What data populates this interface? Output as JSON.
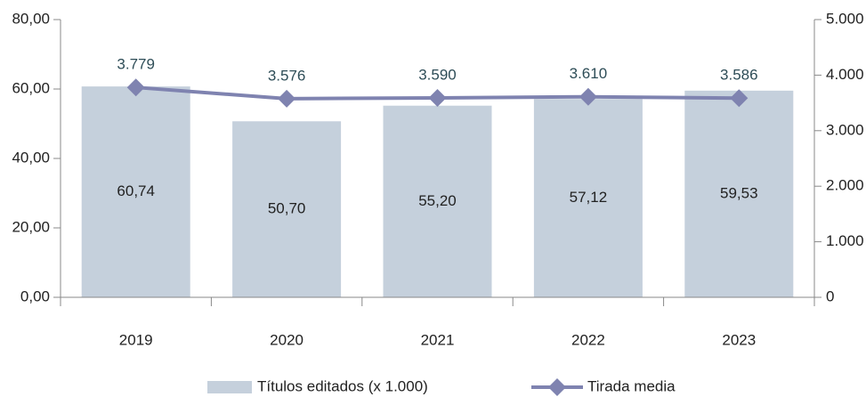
{
  "chart_data": {
    "type": "bar",
    "categories": [
      "2019",
      "2020",
      "2021",
      "2022",
      "2023"
    ],
    "series": [
      {
        "name": "Títulos editados (x 1.000)",
        "color": "#c5d0dc",
        "values": [
          60.74,
          50.7,
          55.2,
          57.12,
          59.53
        ],
        "value_labels": [
          "60,74",
          "50,70",
          "55,20",
          "57,12",
          "59,53"
        ]
      },
      {
        "name": "Tirada media",
        "type": "line",
        "axis": "y2",
        "color": "#7f83b0",
        "values": [
          3779,
          3576,
          3590,
          3610,
          3586
        ],
        "value_labels": [
          "3.779",
          "3.576",
          "3.590",
          "3.610",
          "3.586"
        ]
      }
    ],
    "ylim": [
      0,
      80
    ],
    "yticks": [
      {
        "value": 0,
        "label": "0,00"
      },
      {
        "value": 20,
        "label": "20,00"
      },
      {
        "value": 40,
        "label": "40,00"
      },
      {
        "value": 60,
        "label": "60,00"
      },
      {
        "value": 80,
        "label": "80,00"
      }
    ],
    "y2lim": [
      0,
      5000
    ],
    "y2ticks": [
      0,
      {
        "value": 1000,
        "label": "1.000"
      },
      {
        "value": 2000,
        "label": "2.000"
      },
      {
        "value": 3000,
        "label": "3.000"
      },
      {
        "value": 4000,
        "label": "4.000"
      },
      {
        "value": 5000,
        "label": "5.000"
      }
    ],
    "legend": "bottom"
  }
}
